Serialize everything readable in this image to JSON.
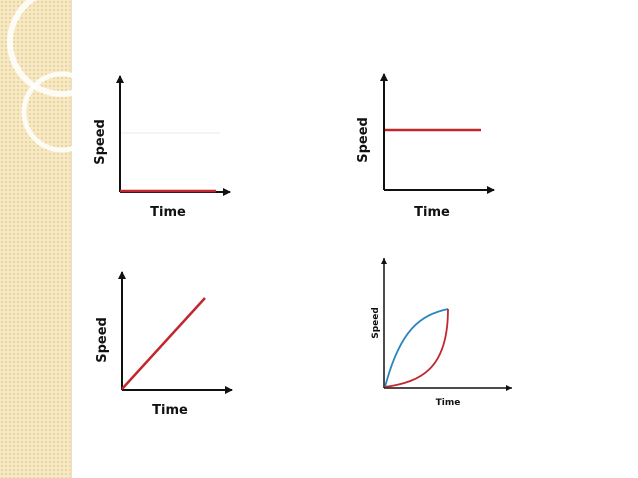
{
  "colors": {
    "panel": "#f6e9c4",
    "axis": "#111111",
    "red_curve": "#c0282d",
    "blue_curve": "#2a86c0"
  },
  "graphs": [
    {
      "id": "at-rest",
      "ylabel": "Speed",
      "xlabel": "Time"
    },
    {
      "id": "constant-speed",
      "ylabel": "Speed",
      "xlabel": "Time"
    },
    {
      "id": "linear-increase",
      "ylabel": "Speed",
      "xlabel": "Time"
    },
    {
      "id": "curved-increase",
      "ylabel": "Speed",
      "xlabel": "Time"
    }
  ]
}
